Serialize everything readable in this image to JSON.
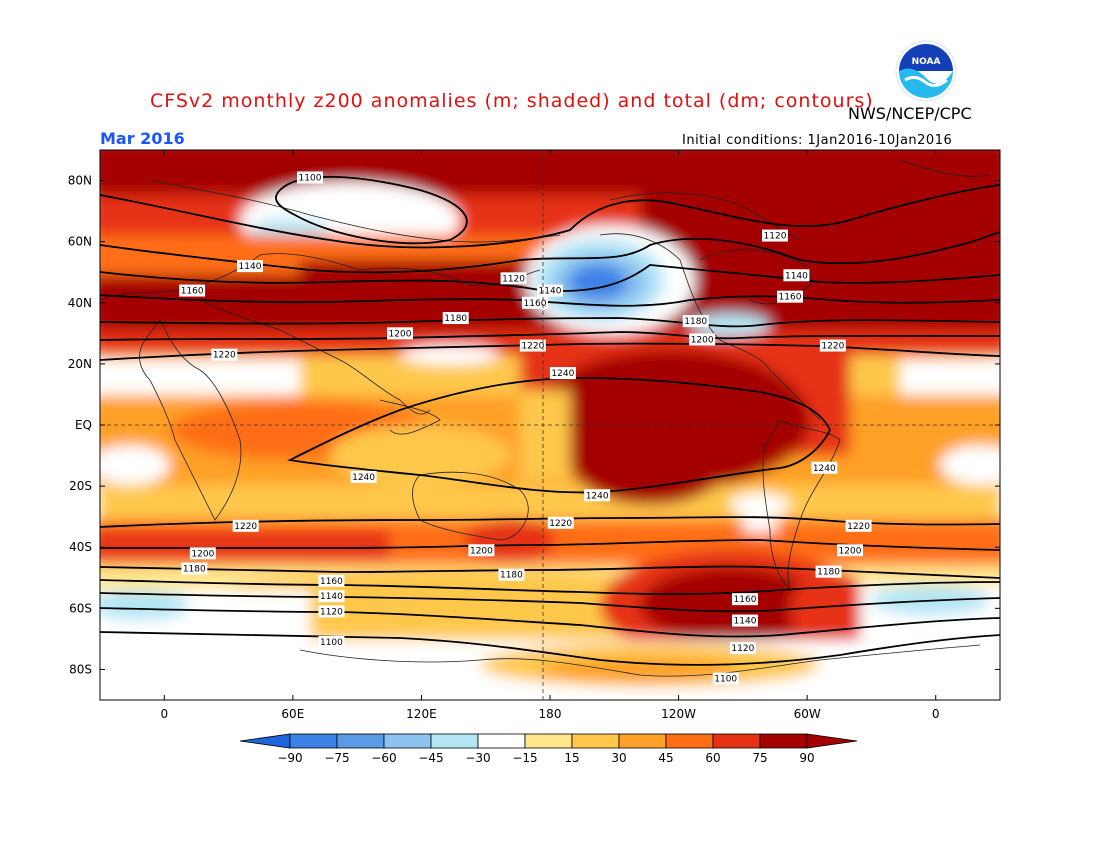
{
  "header": {
    "title": "CFSv2 monthly z200 anomalies (m; shaded) and total (dm; contours)",
    "agency": "NWS/NCEP/CPC",
    "month": "Mar 2016",
    "initial_conditions": "Initial conditions: 1Jan2016-10Jan2016",
    "logo_text": "NOAA"
  },
  "map": {
    "lat_labels": [
      "80N",
      "60N",
      "40N",
      "20N",
      "EQ",
      "20S",
      "40S",
      "60S",
      "80S"
    ],
    "lat_values": [
      80,
      60,
      40,
      20,
      0,
      -20,
      -40,
      -60,
      -80
    ],
    "lon_labels": [
      "0",
      "60E",
      "120E",
      "180",
      "120W",
      "60W",
      "0"
    ],
    "lon_values": [
      0,
      60,
      120,
      180,
      240,
      300,
      360
    ],
    "lon_range": [
      -30,
      390
    ],
    "lat_range": [
      -90,
      90
    ],
    "contour_labels": [
      {
        "text": "1100",
        "lon": 68,
        "lat": 81
      },
      {
        "text": "1120",
        "lon": 285,
        "lat": 62
      },
      {
        "text": "1140",
        "lon": 40,
        "lat": 52
      },
      {
        "text": "1120",
        "lon": 163,
        "lat": 48
      },
      {
        "text": "1140",
        "lon": 295,
        "lat": 49
      },
      {
        "text": "1160",
        "lon": 13,
        "lat": 44
      },
      {
        "text": "1140",
        "lon": 180,
        "lat": 44
      },
      {
        "text": "1160",
        "lon": 292,
        "lat": 42
      },
      {
        "text": "1160",
        "lon": 173,
        "lat": 40
      },
      {
        "text": "1180",
        "lon": 136,
        "lat": 35
      },
      {
        "text": "1180",
        "lon": 248,
        "lat": 34
      },
      {
        "text": "1200",
        "lon": 110,
        "lat": 30
      },
      {
        "text": "1200",
        "lon": 251,
        "lat": 28
      },
      {
        "text": "1220",
        "lon": 172,
        "lat": 26
      },
      {
        "text": "1220",
        "lon": 312,
        "lat": 26
      },
      {
        "text": "1220",
        "lon": 28,
        "lat": 23
      },
      {
        "text": "1240",
        "lon": 186,
        "lat": 17
      },
      {
        "text": "1240",
        "lon": 308,
        "lat": -14
      },
      {
        "text": "1240",
        "lon": 93,
        "lat": -17
      },
      {
        "text": "1240",
        "lon": 202,
        "lat": -23
      },
      {
        "text": "1220",
        "lon": 185,
        "lat": -32
      },
      {
        "text": "1220",
        "lon": 38,
        "lat": -33
      },
      {
        "text": "1220",
        "lon": 324,
        "lat": -33
      },
      {
        "text": "1200",
        "lon": 148,
        "lat": -41
      },
      {
        "text": "1200",
        "lon": 320,
        "lat": -41
      },
      {
        "text": "1200",
        "lon": 18,
        "lat": -42
      },
      {
        "text": "1180",
        "lon": 310,
        "lat": -48
      },
      {
        "text": "1180",
        "lon": 14,
        "lat": -47
      },
      {
        "text": "1180",
        "lon": 162,
        "lat": -49
      },
      {
        "text": "1160",
        "lon": 78,
        "lat": -51
      },
      {
        "text": "1140",
        "lon": 78,
        "lat": -56
      },
      {
        "text": "1160",
        "lon": 271,
        "lat": -57
      },
      {
        "text": "1120",
        "lon": 78,
        "lat": -61
      },
      {
        "text": "1140",
        "lon": 271,
        "lat": -64
      },
      {
        "text": "1100",
        "lon": 78,
        "lat": -71
      },
      {
        "text": "1120",
        "lon": 270,
        "lat": -73
      },
      {
        "text": "1100",
        "lon": 262,
        "lat": -83
      }
    ]
  },
  "colorbar": {
    "levels": [
      "-90",
      "-75",
      "-60",
      "-45",
      "-30",
      "-15",
      "15",
      "30",
      "45",
      "60",
      "75",
      "90"
    ],
    "colors": [
      "#1e64dc",
      "#3c82e6",
      "#5a9be6",
      "#8cc3f0",
      "#b4e6f5",
      "#ffffff",
      "#ffe68c",
      "#ffc84b",
      "#ffa028",
      "#ff6e14",
      "#e63214",
      "#a50000",
      "#a50000"
    ],
    "low_arrow_color": "#1e64dc",
    "high_arrow_color": "#a50000"
  }
}
